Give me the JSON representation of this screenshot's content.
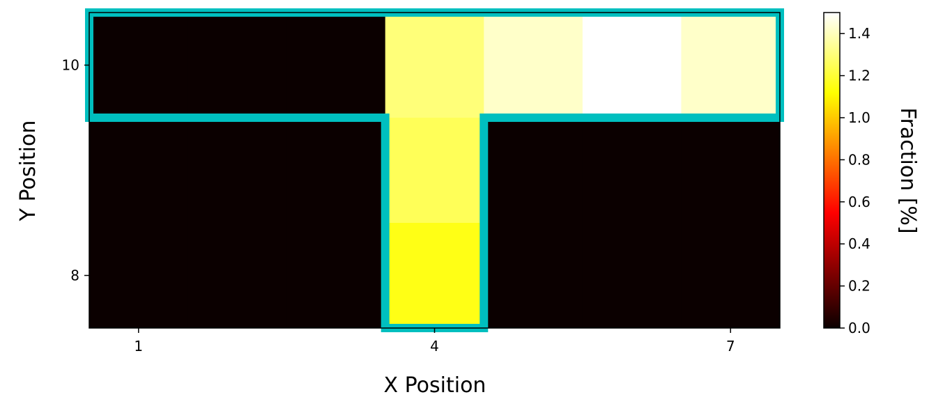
{
  "chart_data": {
    "type": "heatmap",
    "xlabel": "X Position",
    "ylabel": "Y Position",
    "colorbar_label": "Fraction [%]",
    "colormap": "hot",
    "x_range": [
      0.5,
      7.5
    ],
    "y_range": [
      7.5,
      10.5
    ],
    "x_ticks": [
      1,
      4,
      7
    ],
    "y_ticks": [
      8,
      10
    ],
    "colorbar_range": [
      0.0,
      1.5
    ],
    "colorbar_ticks": [
      "0.0",
      "0.2",
      "0.4",
      "0.6",
      "0.8",
      "1.0",
      "1.2",
      "1.4"
    ],
    "x": [
      1,
      2,
      3,
      4,
      5,
      6,
      7
    ],
    "y": [
      8,
      9,
      10
    ],
    "cells": [
      {
        "x": 1,
        "y": 10,
        "value": 0.0
      },
      {
        "x": 2,
        "y": 10,
        "value": 0.0
      },
      {
        "x": 3,
        "y": 10,
        "value": 0.0
      },
      {
        "x": 4,
        "y": 10,
        "value": 1.3
      },
      {
        "x": 5,
        "y": 10,
        "value": 1.42
      },
      {
        "x": 6,
        "y": 10,
        "value": 1.5
      },
      {
        "x": 7,
        "y": 10,
        "value": 1.42
      },
      {
        "x": 1,
        "y": 9,
        "value": 0.0
      },
      {
        "x": 2,
        "y": 9,
        "value": 0.0
      },
      {
        "x": 3,
        "y": 9,
        "value": 0.0
      },
      {
        "x": 4,
        "y": 9,
        "value": 1.25
      },
      {
        "x": 5,
        "y": 9,
        "value": 0.0
      },
      {
        "x": 6,
        "y": 9,
        "value": 0.0
      },
      {
        "x": 7,
        "y": 9,
        "value": 0.0
      },
      {
        "x": 1,
        "y": 8,
        "value": 0.0
      },
      {
        "x": 2,
        "y": 8,
        "value": 0.0
      },
      {
        "x": 3,
        "y": 8,
        "value": 0.0
      },
      {
        "x": 4,
        "y": 8,
        "value": 1.15
      },
      {
        "x": 5,
        "y": 8,
        "value": 0.0
      },
      {
        "x": 6,
        "y": 8,
        "value": 0.0
      },
      {
        "x": 7,
        "y": 8,
        "value": 0.0
      }
    ],
    "outline": {
      "color": "#00bfbf",
      "polygon": [
        [
          0.5,
          10.5
        ],
        [
          7.5,
          10.5
        ],
        [
          7.5,
          9.5
        ],
        [
          4.5,
          9.5
        ],
        [
          4.5,
          7.5
        ],
        [
          3.5,
          7.5
        ],
        [
          3.5,
          9.5
        ],
        [
          0.5,
          9.5
        ]
      ]
    }
  }
}
